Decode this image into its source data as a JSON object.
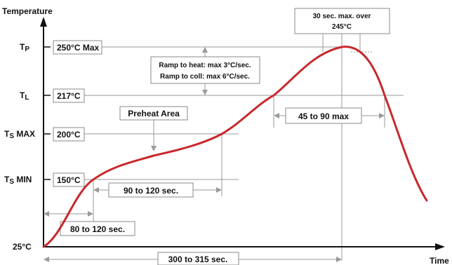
{
  "axes": {
    "y_title": "Temperature",
    "x_title": "Time",
    "origin_label": "25°C"
  },
  "levels": [
    {
      "key": "tp",
      "name": "T",
      "sub": "P",
      "value": "250°C Max"
    },
    {
      "key": "tl",
      "name": "T",
      "sub": "L",
      "value": "217°C"
    },
    {
      "key": "tsmax",
      "name": "T",
      "sub": "S",
      "suffix": " MAX",
      "value": "200°C"
    },
    {
      "key": "tsmin",
      "name": "T",
      "sub": "S",
      "suffix": " MIN",
      "value": "150°C"
    }
  ],
  "annotations": {
    "peak_top": "30 sec. max. over",
    "peak_bottom": "245°C",
    "ramp_heat": "Ramp to heat: max 3°C/sec.",
    "ramp_cool": "Ramp to coll: max 6°C/sec.",
    "preheat_area": "Preheat Area",
    "above_liquidus": "45 to 90 max",
    "preheat_duration": "90 to 120 sec.",
    "initial_ramp": "80 to 120 sec.",
    "total_time": "300 to 315 sec."
  },
  "colors": {
    "profile": "#c8282d",
    "guide": "#9a9a9a",
    "axis": "#111111"
  }
}
